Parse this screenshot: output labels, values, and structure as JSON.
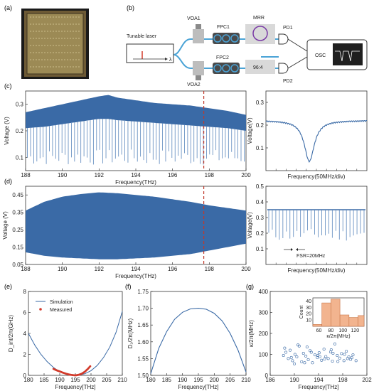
{
  "panels": {
    "a": {
      "letter": "(a)"
    },
    "b": {
      "letter": "(b)",
      "labels": {
        "laser": "Tunable laser",
        "lambda": "λ",
        "voa1": "VOA1",
        "voa2": "VOA2",
        "fpc1": "FPC1",
        "fpc2": "FPC2",
        "mrr": "MRR",
        "coupler": "96:4",
        "pd1": "PD1",
        "pd2": "PD2",
        "osc": "OSC"
      }
    },
    "c": {
      "letter": "(c)"
    },
    "d": {
      "letter": "(d)"
    },
    "e": {
      "letter": "(e)"
    },
    "f": {
      "letter": "(f)"
    },
    "g": {
      "letter": "(g)"
    }
  },
  "colors": {
    "trace": "#3a6aa6",
    "trace_light": "#5a86bc",
    "marker_red": "#d23a2b",
    "dashed_red": "#c0392b",
    "hist_fill": "#f2b48f",
    "hist_edge": "#c9774a",
    "scatter": "#3a6aa6",
    "fiber": "#4aa3d6"
  },
  "chart_data": [
    {
      "id": "c-left",
      "type": "line",
      "xlabel": "Frequency(THz)",
      "ylabel": "Voltage (V)",
      "xlim": [
        188,
        200
      ],
      "ylim": [
        0.05,
        0.35
      ],
      "xticks": [
        "188",
        "190",
        "192",
        "194",
        "196",
        "198",
        "200"
      ],
      "yticks": [
        "0.1",
        "0.2",
        "0.3"
      ],
      "marker_x": 197.7,
      "envelope_x": [
        188,
        189,
        190,
        191,
        192,
        192.5,
        193,
        194,
        195,
        196,
        197,
        198,
        199,
        200
      ],
      "envelope_top": [
        0.27,
        0.285,
        0.3,
        0.315,
        0.33,
        0.335,
        0.325,
        0.315,
        0.305,
        0.3,
        0.295,
        0.285,
        0.275,
        0.26
      ],
      "envelope_bottom": [
        0.21,
        0.215,
        0.225,
        0.235,
        0.245,
        0.245,
        0.24,
        0.235,
        0.23,
        0.225,
        0.22,
        0.215,
        0.21,
        0.2
      ],
      "dip_floor": 0.07,
      "dip_count": 70
    },
    {
      "id": "c-right",
      "type": "line",
      "xlabel": "Frequency(50MHz/div)",
      "ylabel": "Voltage(V)",
      "ylim": [
        0.0,
        0.35
      ],
      "yticks": [
        "0.1",
        "0.2",
        "0.3"
      ],
      "baseline": 0.22,
      "dip_min": 0.04
    },
    {
      "id": "d-left",
      "type": "area",
      "xlabel": "Frequency(THz)",
      "ylabel": "Voltage (V)",
      "xlim": [
        188,
        200
      ],
      "ylim": [
        0.05,
        0.5
      ],
      "xticks": [
        "188",
        "190",
        "192",
        "194",
        "196",
        "198",
        "200"
      ],
      "yticks": [
        "0.05",
        "0.15",
        "0.25",
        "0.35",
        "0.45"
      ],
      "marker_x": 197.7,
      "envelope_x": [
        188,
        189,
        190,
        191,
        192,
        193,
        194,
        195,
        196,
        197,
        198,
        199,
        200
      ],
      "envelope_top": [
        0.36,
        0.41,
        0.44,
        0.455,
        0.465,
        0.46,
        0.45,
        0.44,
        0.425,
        0.41,
        0.39,
        0.375,
        0.36
      ],
      "envelope_bottom": [
        0.12,
        0.1,
        0.09,
        0.085,
        0.08,
        0.08,
        0.085,
        0.09,
        0.1,
        0.11,
        0.13,
        0.15,
        0.17
      ]
    },
    {
      "id": "d-right",
      "type": "line",
      "xlabel": "Frequency(50MHz/div)",
      "ylabel": "Voltage(V)",
      "ylim": [
        0.0,
        0.5
      ],
      "yticks": [
        "0.1",
        "0.2",
        "0.3",
        "0.4",
        "0.5"
      ],
      "baseline": 0.35,
      "dip_floor": 0.15,
      "annotation": "FSR=20MHz"
    },
    {
      "id": "e",
      "type": "line",
      "xlabel": "Frequency[THz]",
      "ylabel": "D_int/2π(GHz)",
      "xlim": [
        180,
        210
      ],
      "ylim": [
        0,
        8
      ],
      "xticks": [
        "180",
        "185",
        "190",
        "195",
        "200",
        "205",
        "210"
      ],
      "yticks": [
        "0",
        "2",
        "4",
        "6",
        "8"
      ],
      "series": [
        {
          "name": "Simulation",
          "x": [
            180,
            182,
            184,
            186,
            188,
            190,
            192,
            194,
            195,
            196,
            198,
            200,
            202,
            204,
            206,
            208,
            210
          ],
          "y": [
            4.0,
            2.9,
            2.0,
            1.3,
            0.75,
            0.35,
            0.12,
            0.02,
            0.0,
            0.02,
            0.15,
            0.45,
            0.95,
            1.7,
            2.7,
            4.1,
            6.1
          ]
        },
        {
          "name": "Measured",
          "x": [
            188,
            189,
            190,
            191,
            192,
            193,
            194,
            195,
            196,
            197,
            198,
            199,
            200
          ],
          "y": [
            0.62,
            0.48,
            0.38,
            0.26,
            0.16,
            0.08,
            0.03,
            0.0,
            0.05,
            0.15,
            0.34,
            0.62,
            0.95
          ]
        }
      ]
    },
    {
      "id": "f",
      "type": "line",
      "xlabel": "Frequency[THz]",
      "ylabel": "D₁/2π(MHz)",
      "xlim": [
        180,
        210
      ],
      "ylim": [
        1.5,
        1.75
      ],
      "xticks": [
        "180",
        "185",
        "190",
        "195",
        "200",
        "205",
        "210"
      ],
      "yticks": [
        "1.50",
        "1.55",
        "1.60",
        "1.65",
        "1.70",
        "1.75"
      ],
      "series": [
        {
          "x": [
            180,
            182.5,
            185,
            187.5,
            190,
            192.5,
            195,
            197.5,
            200,
            202.5,
            205,
            207.5,
            210
          ],
          "y": [
            1.505,
            1.58,
            1.63,
            1.667,
            1.688,
            1.698,
            1.7,
            1.697,
            1.685,
            1.662,
            1.625,
            1.575,
            1.51
          ]
        }
      ]
    },
    {
      "id": "g",
      "type": "scatter",
      "xlabel": "Frequency[THz]",
      "ylabel": "κ/2π(MHz)",
      "xlim": [
        186,
        202
      ],
      "ylim": [
        0,
        400
      ],
      "xticks": [
        "186",
        "190",
        "194",
        "198",
        "202"
      ],
      "yticks": [
        "0",
        "100",
        "200",
        "300",
        "400"
      ],
      "points_x": [
        188.2,
        188.6,
        189.0,
        189.3,
        189.7,
        190.1,
        190.4,
        190.8,
        191.2,
        191.5,
        191.9,
        192.3,
        192.6,
        193.0,
        193.4,
        193.8,
        194.1,
        194.5,
        194.9,
        195.2,
        195.6,
        196.0,
        196.3,
        196.7,
        197.1,
        197.5,
        197.8,
        198.2,
        198.6,
        199.0,
        199.3,
        199.7,
        188.4,
        189.5,
        190.6,
        191.7,
        192.8,
        193.9,
        195.0,
        196.1,
        197.2,
        198.3,
        199.5,
        200.2,
        190.0,
        192.1,
        194.2,
        196.4,
        198.8
      ],
      "points_y": [
        95,
        110,
        80,
        120,
        70,
        100,
        88,
        140,
        65,
        105,
        92,
        75,
        118,
        60,
        98,
        85,
        108,
        72,
        125,
        90,
        80,
        112,
        68,
        150,
        95,
        82,
        104,
        70,
        115,
        88,
        76,
        98,
        130,
        85,
        145,
        60,
        110,
        95,
        78,
        122,
        66,
        100,
        84,
        70,
        55,
        135,
        90,
        105,
        80
      ],
      "inset": {
        "type": "bar",
        "ylabel": "Count",
        "xlabel": "κ/2π(MHz)",
        "xticks": [
          "60",
          "80",
          "100",
          "120"
        ],
        "yticks": [
          "10",
          "20",
          "30",
          "40"
        ],
        "bin_edges": [
          50,
          65,
          80,
          95,
          110,
          125,
          135
        ],
        "counts": [
          3,
          37,
          43,
          18,
          14,
          17
        ],
        "ylim": [
          0,
          45
        ]
      }
    }
  ]
}
